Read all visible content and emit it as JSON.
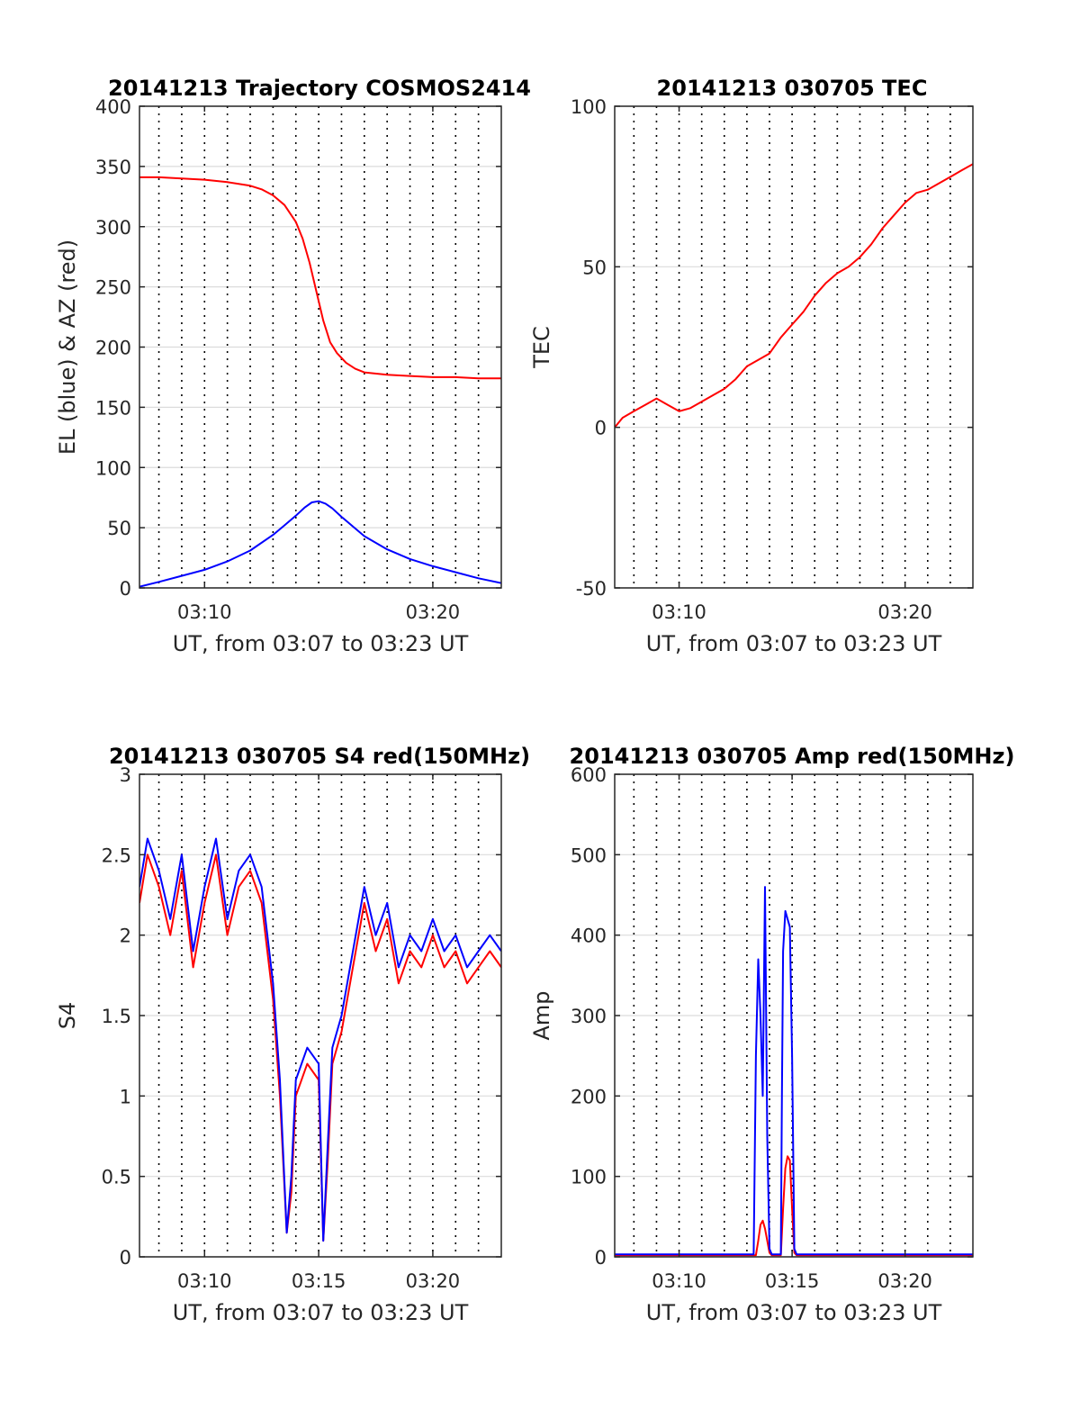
{
  "figure": {
    "colors": {
      "az": "#ff0000",
      "el": "#0000ff",
      "tec": "#ff0000",
      "red": "#ff0000",
      "blue": "#0000ff"
    }
  },
  "chart_data": [
    {
      "type": "line",
      "title": "20141213 Trajectory COSMOS2414",
      "xlabel": "UT, from 03:07 to 03:23 UT",
      "ylabel": "EL (blue) & AZ (red)",
      "xlim_minutes_after_0300": [
        7.15,
        23.0
      ],
      "ylim": [
        0,
        400
      ],
      "xticks": [
        "03:10",
        "03:20"
      ],
      "yticks": [
        "0",
        "50",
        "100",
        "150",
        "200",
        "250",
        "300",
        "350",
        "400"
      ],
      "grid": true,
      "series": [
        {
          "color": "#ff0000",
          "x": [
            7.15,
            8,
            9,
            10,
            11,
            12,
            12.5,
            13,
            13.5,
            14,
            14.3,
            14.6,
            14.9,
            15.2,
            15.5,
            15.8,
            16.2,
            16.6,
            17,
            18,
            19,
            20,
            21,
            22,
            23
          ],
          "y": [
            341,
            341,
            340,
            339,
            337,
            334,
            331,
            326,
            318,
            304,
            290,
            270,
            246,
            222,
            204,
            195,
            187,
            182,
            179,
            177,
            176,
            175,
            175,
            174,
            174
          ]
        },
        {
          "color": "#0000ff",
          "x": [
            7.15,
            8,
            9,
            10,
            11,
            12,
            13,
            13.5,
            14,
            14.4,
            14.7,
            15.0,
            15.3,
            15.6,
            16,
            16.5,
            17,
            18,
            19,
            20,
            21,
            22,
            23
          ],
          "y": [
            1,
            5,
            10,
            15,
            22,
            31,
            44,
            52,
            60,
            67,
            71,
            72,
            70,
            66,
            59,
            51,
            43,
            32,
            24,
            18,
            13,
            8,
            4
          ]
        }
      ]
    },
    {
      "type": "line",
      "title": "20141213 030705 TEC",
      "xlabel": "UT, from 03:07 to 03:23 UT",
      "ylabel": "TEC",
      "xlim_minutes_after_0300": [
        7.15,
        23.0
      ],
      "ylim": [
        -50,
        100
      ],
      "xticks": [
        "03:10",
        "03:20"
      ],
      "yticks": [
        "-50",
        "0",
        "50",
        "100"
      ],
      "grid": true,
      "series": [
        {
          "color": "#ff0000",
          "x": [
            7.15,
            7.5,
            8,
            8.5,
            9,
            9.5,
            10,
            10.5,
            11,
            11.5,
            12,
            12.5,
            13,
            13.5,
            14,
            14.5,
            15,
            15.5,
            16,
            16.5,
            17,
            17.5,
            18,
            18.5,
            19,
            19.5,
            20,
            20.5,
            21,
            21.5,
            22,
            22.5,
            23
          ],
          "y": [
            0,
            3,
            5,
            7,
            9,
            7,
            5,
            6,
            8,
            10,
            12,
            15,
            19,
            21,
            23,
            28,
            32,
            36,
            41,
            45,
            48,
            50,
            53,
            57,
            62,
            66,
            70,
            73,
            74,
            76,
            78,
            80,
            82
          ]
        }
      ]
    },
    {
      "type": "line",
      "title": "20141213 030705 S4 red(150MHz)",
      "xlabel": "UT, from 03:07 to 03:23 UT",
      "ylabel": "S4",
      "xlim_minutes_after_0300": [
        7.15,
        23.0
      ],
      "ylim": [
        0,
        3
      ],
      "xticks": [
        "03:10",
        "03:15",
        "03:20"
      ],
      "yticks": [
        "0",
        "0.5",
        "1",
        "1.5",
        "2",
        "2.5",
        "3"
      ],
      "grid": true,
      "series": [
        {
          "color": "#ff0000",
          "x": [
            7.15,
            7.5,
            8,
            8.5,
            9,
            9.5,
            10,
            10.5,
            11,
            11.5,
            12,
            12.5,
            13,
            13.3,
            13.6,
            13.8,
            14,
            14.5,
            15,
            15.2,
            15.4,
            15.6,
            16,
            16.5,
            17,
            17.5,
            18,
            18.5,
            19,
            19.5,
            20,
            20.5,
            21,
            21.5,
            22,
            22.5,
            23
          ],
          "y": [
            2.2,
            2.5,
            2.3,
            2.0,
            2.4,
            1.8,
            2.2,
            2.5,
            2.0,
            2.3,
            2.4,
            2.2,
            1.6,
            1.0,
            0.15,
            0.4,
            1.0,
            1.2,
            1.1,
            0.1,
            0.6,
            1.2,
            1.4,
            1.8,
            2.2,
            1.9,
            2.1,
            1.7,
            1.9,
            1.8,
            2.0,
            1.8,
            1.9,
            1.7,
            1.8,
            1.9,
            1.8
          ]
        },
        {
          "color": "#0000ff",
          "x": [
            7.15,
            7.5,
            8,
            8.5,
            9,
            9.5,
            10,
            10.5,
            11,
            11.5,
            12,
            12.5,
            13,
            13.3,
            13.6,
            13.8,
            14,
            14.5,
            15,
            15.2,
            15.4,
            15.6,
            16,
            16.5,
            17,
            17.5,
            18,
            18.5,
            19,
            19.5,
            20,
            20.5,
            21,
            21.5,
            22,
            22.5,
            23
          ],
          "y": [
            2.3,
            2.6,
            2.4,
            2.1,
            2.5,
            1.9,
            2.3,
            2.6,
            2.1,
            2.4,
            2.5,
            2.3,
            1.7,
            1.1,
            0.15,
            0.5,
            1.1,
            1.3,
            1.2,
            0.1,
            0.7,
            1.3,
            1.5,
            1.9,
            2.3,
            2.0,
            2.2,
            1.8,
            2.0,
            1.9,
            2.1,
            1.9,
            2.0,
            1.8,
            1.9,
            2.0,
            1.9
          ]
        }
      ]
    },
    {
      "type": "line",
      "title": "20141213 030705 Amp red(150MHz)",
      "xlabel": "UT, from 03:07 to 03:23 UT",
      "ylabel": "Amp",
      "xlim_minutes_after_0300": [
        7.15,
        23.0
      ],
      "ylim": [
        0,
        600
      ],
      "xticks": [
        "03:10",
        "03:15",
        "03:20"
      ],
      "yticks": [
        "0",
        "100",
        "200",
        "300",
        "400",
        "500",
        "600"
      ],
      "grid": true,
      "series": [
        {
          "color": "#ff0000",
          "x": [
            7.15,
            13.4,
            13.5,
            13.6,
            13.7,
            13.8,
            13.9,
            14.0,
            14.1,
            14.5,
            14.6,
            14.7,
            14.8,
            14.9,
            15.0,
            15.1,
            15.2,
            23
          ],
          "y": [
            2,
            2,
            20,
            40,
            45,
            35,
            20,
            5,
            2,
            2,
            60,
            110,
            125,
            120,
            60,
            5,
            2,
            2
          ]
        },
        {
          "color": "#0000ff",
          "x": [
            7.15,
            13.3,
            13.4,
            13.5,
            13.6,
            13.7,
            13.8,
            13.9,
            14.0,
            14.1,
            14.5,
            14.55,
            14.6,
            14.7,
            14.8,
            14.9,
            15.0,
            15.1,
            15.2,
            23
          ],
          "y": [
            3,
            3,
            250,
            370,
            300,
            200,
            460,
            150,
            10,
            3,
            3,
            200,
            380,
            430,
            420,
            410,
            250,
            10,
            3,
            3
          ]
        }
      ]
    }
  ]
}
